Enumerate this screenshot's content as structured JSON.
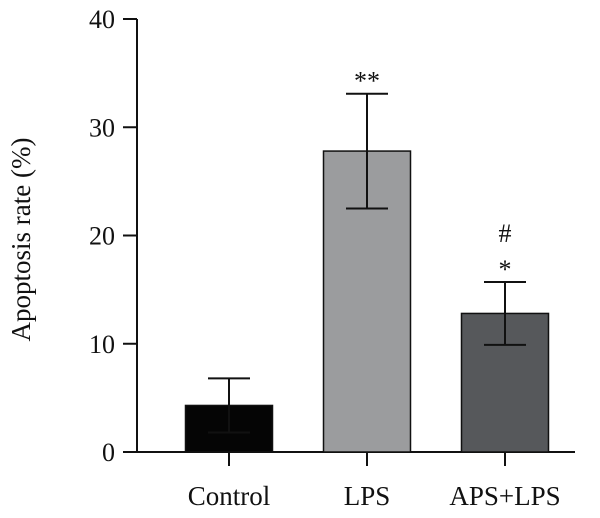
{
  "chart_data": {
    "type": "bar",
    "title": "",
    "xlabel": "",
    "ylabel": "Apoptosis rate (%)",
    "ylim": [
      0,
      40
    ],
    "yticks": [
      0,
      10,
      20,
      30,
      40
    ],
    "categories": [
      "Control",
      "LPS",
      "APS+LPS"
    ],
    "values": [
      4.3,
      27.8,
      12.8
    ],
    "errors": [
      2.5,
      5.3,
      2.9
    ],
    "annotations": [
      "",
      "**",
      "*"
    ],
    "annotations_top": [
      "",
      "",
      "#"
    ],
    "colors": [
      "#050505",
      "#9b9c9e",
      "#56585b"
    ],
    "grid": false,
    "legend": "none"
  }
}
